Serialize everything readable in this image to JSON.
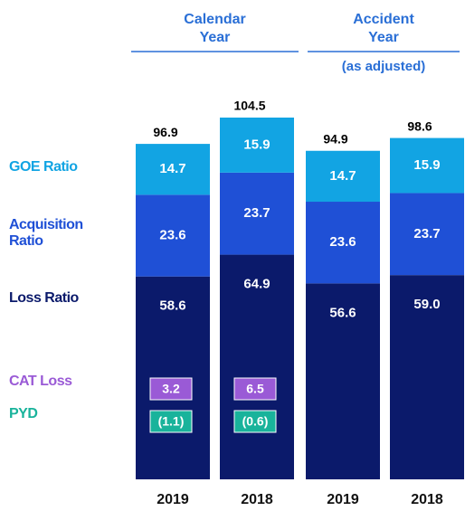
{
  "chart_data": {
    "type": "stacked_bar",
    "groups": [
      {
        "label": "Calendar Year"
      },
      {
        "label": "Accident Year",
        "sublabel": "(as adjusted)"
      }
    ],
    "categories": [
      "2019",
      "2018",
      "2019",
      "2018"
    ],
    "series": [
      {
        "name": "Loss Ratio",
        "color": "#0b1a6b",
        "values": [
          58.6,
          64.9,
          56.6,
          59.0
        ],
        "value_labels": [
          "58.6",
          "64.9",
          "56.6",
          "59.0"
        ]
      },
      {
        "name": "Acquisition Ratio",
        "color": "#1f50d6",
        "values": [
          23.6,
          23.7,
          23.6,
          23.7
        ]
      },
      {
        "name": "GOE Ratio",
        "color": "#12a4e3",
        "values": [
          14.7,
          15.9,
          14.7,
          15.9
        ]
      }
    ],
    "totals": [
      96.9,
      104.5,
      94.9,
      98.6
    ],
    "badges": [
      {
        "name": "CAT Loss",
        "color": "#9a5ad6",
        "values": [
          3.2,
          6.5,
          null,
          null
        ]
      },
      {
        "name": "PYD",
        "color": "#19b39b",
        "values": [
          -1.1,
          -0.6,
          null,
          null
        ],
        "value_labels": [
          "(1.1)",
          "(0.6)",
          null,
          null
        ]
      }
    ]
  }
}
